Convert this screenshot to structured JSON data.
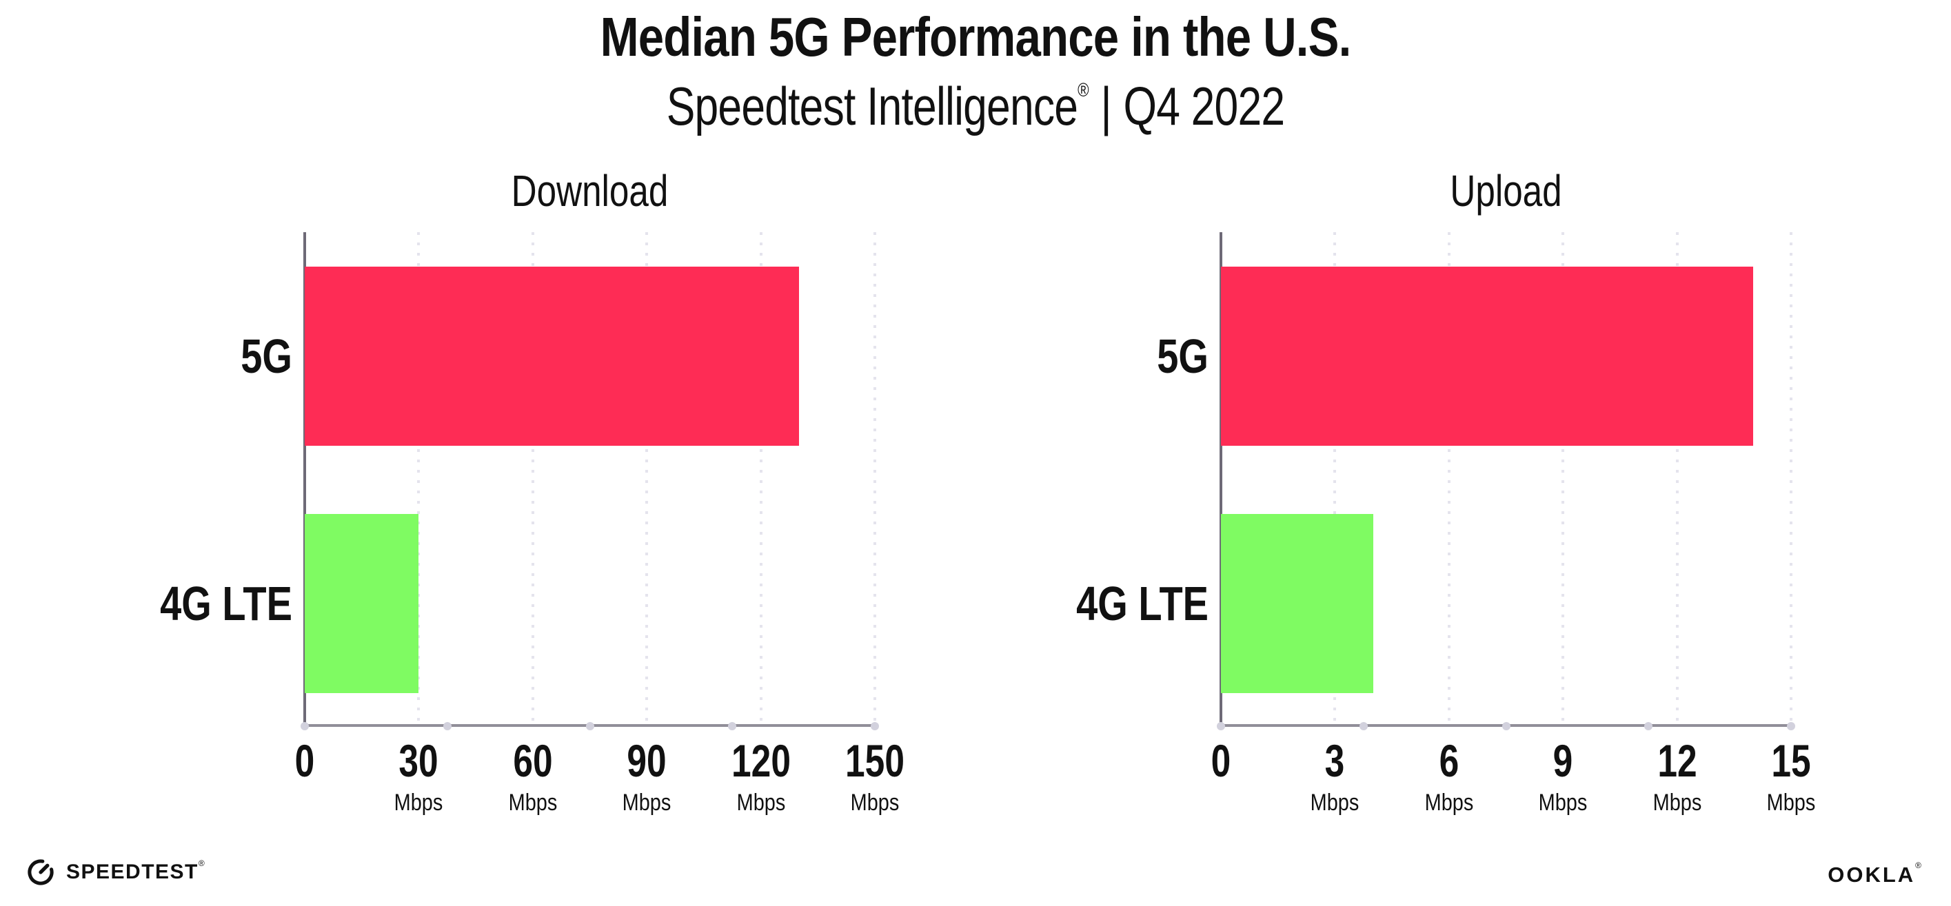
{
  "header": {
    "title": "Median 5G Performance in the U.S.",
    "subtitle_brand": "Speedtest Intelligence",
    "subtitle_reg": "®",
    "subtitle_separator": "|",
    "subtitle_period": "Q4 2022"
  },
  "chart_data": [
    {
      "type": "bar",
      "orientation": "horizontal",
      "title": "Download",
      "categories": [
        "5G",
        "4G LTE"
      ],
      "values": [
        130,
        30
      ],
      "unit": "Mbps",
      "xlabel": "",
      "ylabel": "",
      "xlim": [
        0,
        150
      ],
      "xticks": [
        0,
        30,
        60,
        90,
        120,
        150
      ],
      "bar_colors": [
        "#fe2c55",
        "#7ffb62"
      ],
      "grid": "dotted-vertical",
      "legend": "none"
    },
    {
      "type": "bar",
      "orientation": "horizontal",
      "title": "Upload",
      "categories": [
        "5G",
        "4G LTE"
      ],
      "values": [
        14,
        4
      ],
      "unit": "Mbps",
      "xlabel": "",
      "ylabel": "",
      "xlim": [
        0,
        15
      ],
      "xticks": [
        0,
        3,
        6,
        9,
        12,
        15
      ],
      "bar_colors": [
        "#fe2c55",
        "#7ffb62"
      ],
      "grid": "dotted-vertical",
      "legend": "none"
    }
  ],
  "footer": {
    "speedtest_logo_text": "SPEEDTEST",
    "speedtest_reg": "®",
    "ookla_logo_text": "OOKLA",
    "ookla_reg": "®"
  },
  "colors": {
    "bar_5g": "#fe2c55",
    "bar_4g_lte": "#7ffb62",
    "axis_bottom": "#918e99",
    "axis_left": "#6e6a77",
    "gridline": "#e4e3ed",
    "axis_dot": "#d2d1dd",
    "text": "#111111",
    "background": "#ffffff"
  }
}
